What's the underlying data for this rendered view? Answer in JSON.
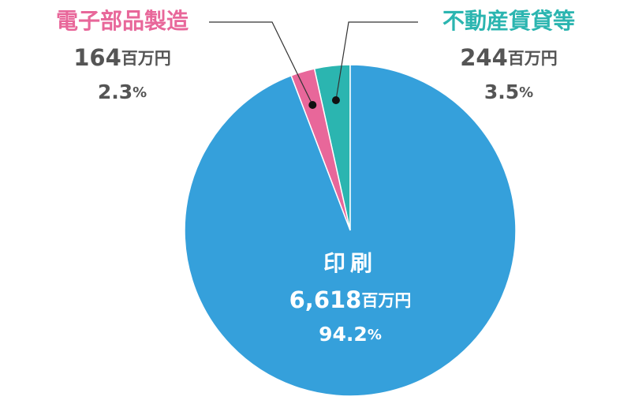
{
  "chart_data": {
    "type": "pie",
    "categories": [
      "印刷",
      "電子部品製造",
      "不動産賃貸等"
    ],
    "values": [
      6618,
      164,
      244
    ],
    "value_labels": [
      "6,618",
      "164",
      "244"
    ],
    "unit": "百万円",
    "percents": [
      94.2,
      2.3,
      3.5
    ],
    "percent_unit": "%",
    "colors": [
      "#35a0db",
      "#e8679a",
      "#2bb5b0"
    ]
  }
}
